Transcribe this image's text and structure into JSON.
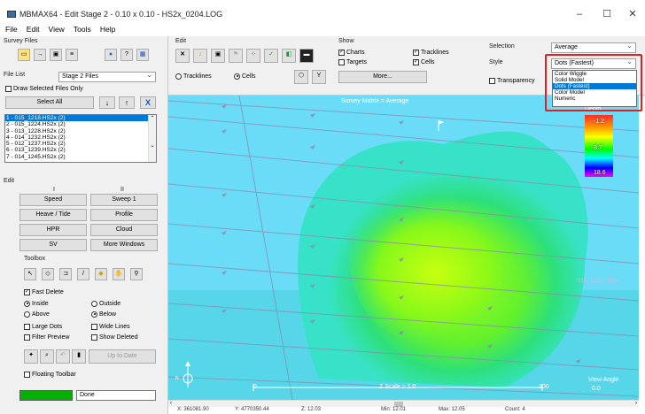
{
  "window": {
    "title": "MBMAX64 - Edit Stage 2 - 0.10 x 0.10 - HS2x_0204.LOG",
    "min": "–",
    "max": "☐",
    "close": "✕"
  },
  "menu": [
    "File",
    "Edit",
    "View",
    "Tools",
    "Help"
  ],
  "survey_files": {
    "group": "Survey Files",
    "file_list_label": "File List",
    "file_list_value": "Stage 2 Files",
    "draw_selected": "Draw Selected Files Only",
    "select_all": "Select All",
    "up": "↓",
    "down": "↑",
    "delete": "X",
    "files": [
      "1 - 015_1218.HS2x (2)",
      "2 - 015_1224.HS2x (2)",
      "3 - 013_1228.HS2x (2)",
      "4 - 014_1232.HS2x (2)",
      "5 - 012_1237.HS2x (2)",
      "6 - 013_1239.HS2x (2)",
      "7 - 014_1245.HS2x (2)"
    ]
  },
  "edit": {
    "group": "Edit",
    "col1": "I",
    "col2": "II",
    "buttons": [
      [
        "Speed",
        "Sweep 1"
      ],
      [
        "Heave / Tide",
        "Profile"
      ],
      [
        "HPR",
        "Cloud"
      ],
      [
        "SV",
        "More Windows"
      ]
    ],
    "toolbox": "Toolbox",
    "fast_delete": "Fast Delete",
    "inside": "Inside",
    "outside": "Outside",
    "above": "Above",
    "below": "Below",
    "large_dots": "Large Dots",
    "wide_lines": "Wide Lines",
    "filter_preview": "Filter Preview",
    "show_deleted": "Show Deleted",
    "up_to_date": "Up to Date",
    "floating_toolbar": "Floating Toolbar",
    "done": "Done"
  },
  "top_edit": {
    "group": "Edit",
    "tracklines": "Tracklines",
    "cells": "Cells"
  },
  "show": {
    "group": "Show",
    "charts": "Charts",
    "tracklines": "Tracklines",
    "targets": "Targets",
    "cells": "Cells",
    "more": "More..."
  },
  "selection": {
    "selection_label": "Selection",
    "selection_value": "Average",
    "style_label": "Style",
    "style_value": "Dots (Fastest)",
    "transparency": "Transparency",
    "options": [
      "Color Wiggle",
      "Solid Model",
      "Dots (Fastest)",
      "Color Model",
      "Numeric"
    ]
  },
  "view": {
    "title": "Survey Matrix = Average",
    "legend_title": "Depth",
    "legend_values": [
      "-1.2",
      "8.7",
      "18.6"
    ],
    "z_scale": "Z Scale = 1.0",
    "scale_min": "0",
    "scale_max": "100",
    "view_angle": "View Angle",
    "view_angle_value": "0.0",
    "line_label": "015_1218.HS2x"
  },
  "status": {
    "x": "X: 361081.90",
    "y": "Y: 4770350.44",
    "z": "Z: 12.03",
    "min": "Min: 12.01",
    "max": "Max: 12.05",
    "count": "Count: 4"
  }
}
